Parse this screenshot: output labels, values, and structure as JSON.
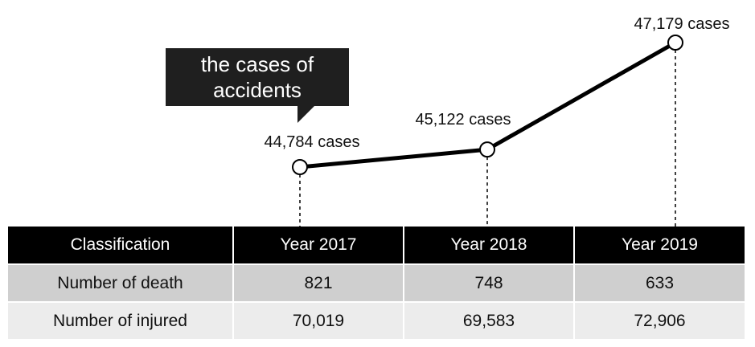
{
  "callout": {
    "line1": "the cases of",
    "line2": "accidents"
  },
  "chart_data": {
    "type": "line",
    "title": "the cases of accidents",
    "categories": [
      "Year  2017",
      "Year 2018",
      "Year 2019"
    ],
    "series": [
      {
        "name": "the cases of accidents",
        "values": [
          44784,
          45122,
          47179
        ]
      }
    ],
    "labels": [
      "44,784 cases",
      "45,122 cases",
      "47,179 cases"
    ],
    "grid": false,
    "line_color": "#000000"
  },
  "table": {
    "headers": [
      "Classification",
      "Year  2017",
      "Year 2018",
      "Year 2019"
    ],
    "rows": [
      [
        "Number of death",
        "821",
        "748",
        "633"
      ],
      [
        "Number of injured",
        "70,019",
        "69,583",
        "72,906"
      ]
    ]
  }
}
